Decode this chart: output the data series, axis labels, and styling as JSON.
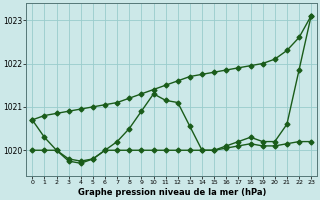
{
  "title": "Graphe pression niveau de la mer (hPa)",
  "background_color": "#cce8e8",
  "grid_color": "#99cccc",
  "line_color": "#1a5c1a",
  "xlim": [
    -0.5,
    23.5
  ],
  "ylim": [
    1019.4,
    1023.4
  ],
  "yticks": [
    1020,
    1021,
    1022,
    1023
  ],
  "xticks": [
    0,
    1,
    2,
    3,
    4,
    5,
    6,
    7,
    8,
    9,
    10,
    11,
    12,
    13,
    14,
    15,
    16,
    17,
    18,
    19,
    20,
    21,
    22,
    23
  ],
  "series": [
    {
      "x": [
        0,
        1,
        2,
        3,
        4,
        5,
        6,
        7,
        8,
        9,
        10,
        11,
        12,
        13,
        14,
        15,
        16,
        17,
        18,
        19,
        20,
        21,
        22,
        23
      ],
      "y": [
        1020.7,
        1020.8,
        1020.85,
        1020.9,
        1020.95,
        1021.0,
        1021.05,
        1021.1,
        1021.2,
        1021.3,
        1021.4,
        1021.5,
        1021.6,
        1021.7,
        1021.75,
        1021.8,
        1021.85,
        1021.9,
        1021.95,
        1022.0,
        1022.1,
        1022.3,
        1022.6,
        1023.1
      ],
      "marker": "D",
      "markersize": 2.5,
      "linewidth": 1.0
    },
    {
      "x": [
        0,
        1,
        2,
        3,
        4,
        5,
        6,
        7,
        8,
        9,
        10,
        11,
        12,
        13,
        14,
        15,
        16,
        17,
        18,
        19,
        20,
        21,
        22,
        23
      ],
      "y": [
        1020.7,
        1020.3,
        1020.0,
        1019.75,
        1019.7,
        1019.8,
        1020.0,
        1020.2,
        1020.5,
        1020.9,
        1021.3,
        1021.15,
        1021.1,
        1020.55,
        1020.0,
        1020.0,
        1020.1,
        1020.2,
        1020.3,
        1020.2,
        1020.2,
        1020.6,
        1021.85,
        1023.1
      ],
      "marker": "D",
      "markersize": 2.5,
      "linewidth": 1.0
    },
    {
      "x": [
        0,
        1,
        2,
        3,
        4,
        5,
        6,
        7,
        8,
        9,
        10,
        11,
        12,
        13,
        14,
        15,
        16,
        17,
        18,
        19,
        20,
        21,
        22,
        23
      ],
      "y": [
        1020.0,
        1020.0,
        1020.0,
        1019.8,
        1019.75,
        1019.8,
        1020.0,
        1020.0,
        1020.0,
        1020.0,
        1020.0,
        1020.0,
        1020.0,
        1020.0,
        1020.0,
        1020.0,
        1020.05,
        1020.1,
        1020.15,
        1020.1,
        1020.1,
        1020.15,
        1020.2,
        1020.2
      ],
      "marker": "D",
      "markersize": 2.5,
      "linewidth": 1.0
    }
  ],
  "figwidth": 3.2,
  "figheight": 2.0,
  "dpi": 100
}
